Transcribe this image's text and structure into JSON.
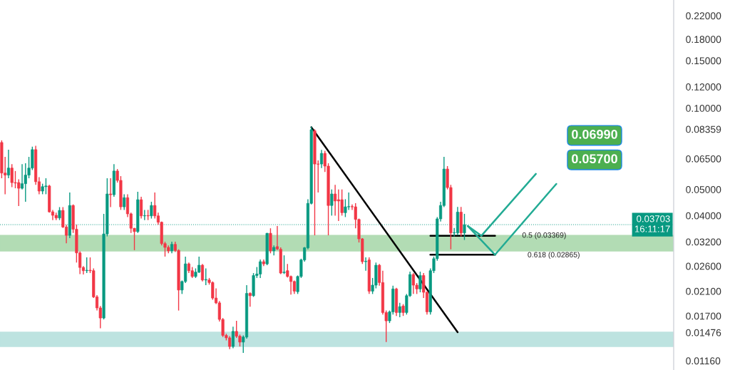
{
  "chart_data": {
    "type": "candlestick",
    "categories": [
      null,
      null,
      null,
      null,
      null,
      null,
      null,
      null,
      null,
      null,
      null,
      null,
      null,
      null,
      null,
      null,
      null,
      null,
      null,
      null,
      null,
      null,
      null,
      null,
      null,
      null,
      null,
      null,
      null,
      null,
      null,
      null,
      null,
      null,
      null,
      null,
      null,
      null,
      null,
      null,
      null,
      null,
      null,
      null,
      null,
      null,
      null,
      null,
      null,
      null,
      null,
      null,
      null,
      null,
      null,
      null,
      null,
      null,
      null,
      null,
      null,
      null,
      null,
      null,
      null,
      null,
      null,
      null,
      null,
      null,
      null,
      null,
      null,
      null,
      null,
      null,
      null,
      null,
      null,
      null,
      null,
      null,
      null,
      null,
      null,
      null,
      null,
      null,
      null,
      null,
      null,
      null,
      null,
      null,
      null,
      null,
      null,
      null,
      null,
      null,
      null,
      null,
      null,
      null,
      null,
      null,
      null,
      null,
      null,
      null,
      null,
      null,
      null,
      null,
      null,
      null,
      null,
      null,
      null,
      null,
      null,
      null,
      null,
      null,
      null,
      null,
      null,
      null,
      null,
      null,
      null,
      null,
      null,
      null,
      null,
      null,
      null,
      null,
      null,
      null,
      null,
      null,
      null,
      null,
      null,
      null,
      null,
      null,
      null,
      null,
      null,
      null,
      null,
      null,
      null,
      null,
      null,
      null,
      null,
      null,
      null,
      null,
      null,
      null,
      null,
      null,
      null,
      null,
      null,
      null,
      null,
      null,
      null,
      null,
      null,
      null,
      null,
      null,
      null,
      null,
      null,
      null,
      null,
      null,
      null,
      null,
      null,
      null,
      null,
      null,
      null,
      null,
      null,
      null,
      null,
      null,
      null,
      null
    ],
    "ohlc": [
      [
        0.0746,
        0.076,
        0.055,
        0.0575
      ],
      [
        0.0575,
        0.066,
        0.048,
        0.0565
      ],
      [
        0.0565,
        0.0702,
        0.055,
        0.06
      ],
      [
        0.06,
        0.062,
        0.051,
        0.053
      ],
      [
        0.053,
        0.0585,
        0.0505,
        0.0528
      ],
      [
        0.053,
        0.0545,
        0.0434,
        0.0505
      ],
      [
        0.0505,
        0.062,
        0.05,
        0.0525
      ],
      [
        0.0525,
        0.0625,
        0.045,
        0.0565
      ],
      [
        0.0565,
        0.066,
        0.055,
        0.06
      ],
      [
        0.06,
        0.072,
        0.059,
        0.0702
      ],
      [
        0.0702,
        0.0725,
        0.052,
        0.0534
      ],
      [
        0.0534,
        0.0555,
        0.048,
        0.0493
      ],
      [
        0.0493,
        0.0525,
        0.048,
        0.0512
      ],
      [
        0.0512,
        0.055,
        0.048,
        0.0515
      ],
      [
        0.0515,
        0.052,
        0.041,
        0.0413
      ],
      [
        0.0413,
        0.042,
        0.0385,
        0.0401
      ],
      [
        0.0401,
        0.041,
        0.0385,
        0.0392
      ],
      [
        0.0392,
        0.043,
        0.0385,
        0.0418
      ],
      [
        0.0418,
        0.043,
        0.036,
        0.0363
      ],
      [
        0.0363,
        0.037,
        0.0316,
        0.0338
      ],
      [
        0.0338,
        0.0487,
        0.033,
        0.0436
      ],
      [
        0.0436,
        0.044,
        0.0345,
        0.0356
      ],
      [
        0.0356,
        0.037,
        0.0268,
        0.0291
      ],
      [
        0.0291,
        0.0295,
        0.0243,
        0.0257
      ],
      [
        0.0257,
        0.026,
        0.0242,
        0.025
      ],
      [
        0.025,
        0.028,
        0.0245,
        0.0251
      ],
      [
        0.0251,
        0.028,
        0.0245,
        0.025
      ],
      [
        0.025,
        0.0255,
        0.0198,
        0.02
      ],
      [
        0.02,
        0.0203,
        0.0178,
        0.0182
      ],
      [
        0.0182,
        0.0185,
        0.0153,
        0.0167
      ],
      [
        0.0167,
        0.0406,
        0.0165,
        0.0342
      ],
      [
        0.0342,
        0.055,
        0.0335,
        0.0481
      ],
      [
        0.0481,
        0.055,
        0.043,
        0.0478
      ],
      [
        0.0478,
        0.062,
        0.047,
        0.0585
      ],
      [
        0.0585,
        0.0595,
        0.053,
        0.054
      ],
      [
        0.054,
        0.056,
        0.042,
        0.0431
      ],
      [
        0.0431,
        0.048,
        0.042,
        0.0466
      ],
      [
        0.0466,
        0.048,
        0.0395,
        0.0406
      ],
      [
        0.0406,
        0.041,
        0.0345,
        0.0359
      ],
      [
        0.0359,
        0.036,
        0.0298,
        0.0349
      ],
      [
        0.0349,
        0.049,
        0.0345,
        0.0458
      ],
      [
        0.0458,
        0.047,
        0.039,
        0.0399
      ],
      [
        0.0399,
        0.042,
        0.0385,
        0.04
      ],
      [
        0.04,
        0.042,
        0.0385,
        0.0399
      ],
      [
        0.0399,
        0.045,
        0.039,
        0.0436
      ],
      [
        0.0436,
        0.0487,
        0.039,
        0.0399
      ],
      [
        0.0399,
        0.041,
        0.037,
        0.0378
      ],
      [
        0.0378,
        0.038,
        0.031,
        0.0315
      ],
      [
        0.0315,
        0.032,
        0.0282,
        0.0305
      ],
      [
        0.0305,
        0.031,
        0.029,
        0.0296
      ],
      [
        0.0296,
        0.032,
        0.029,
        0.0313
      ],
      [
        0.0313,
        0.032,
        0.0293,
        0.0297
      ],
      [
        0.0297,
        0.03,
        0.0178,
        0.0212
      ],
      [
        0.0212,
        0.023,
        0.0205,
        0.0228
      ],
      [
        0.0228,
        0.0282,
        0.0225,
        0.0265
      ],
      [
        0.0265,
        0.0268,
        0.0245,
        0.025
      ],
      [
        0.025,
        0.0258,
        0.0235,
        0.0238
      ],
      [
        0.0238,
        0.0255,
        0.0235,
        0.0247
      ],
      [
        0.0247,
        0.0282,
        0.0245,
        0.0262
      ],
      [
        0.0262,
        0.0265,
        0.0228,
        0.0231
      ],
      [
        0.0231,
        0.0255,
        0.0221,
        0.0232
      ],
      [
        0.0231,
        0.0235,
        0.0222,
        0.0226
      ],
      [
        0.0226,
        0.0228,
        0.0195,
        0.0198
      ],
      [
        0.0198,
        0.0215,
        0.0188,
        0.019
      ],
      [
        0.019,
        0.0193,
        0.0162,
        0.0165
      ],
      [
        0.0165,
        0.0167,
        0.0142,
        0.0144
      ],
      [
        0.0144,
        0.0146,
        0.0138,
        0.0141
      ],
      [
        0.0141,
        0.0143,
        0.0128,
        0.0131
      ],
      [
        0.0131,
        0.0155,
        0.0129,
        0.0149
      ],
      [
        0.0149,
        0.0163,
        0.0141,
        0.0143
      ],
      [
        0.0143,
        0.0145,
        0.0131,
        0.0136
      ],
      [
        0.0136,
        0.0144,
        0.0124,
        0.0142
      ],
      [
        0.0142,
        0.0221,
        0.014,
        0.0206
      ],
      [
        0.0206,
        0.0208,
        0.0184,
        0.0202
      ],
      [
        0.0202,
        0.0245,
        0.02,
        0.024
      ],
      [
        0.024,
        0.0258,
        0.0235,
        0.0243
      ],
      [
        0.0243,
        0.0275,
        0.0235,
        0.027
      ],
      [
        0.027,
        0.0275,
        0.026,
        0.0265
      ],
      [
        0.0265,
        0.0345,
        0.0262,
        0.0344
      ],
      [
        0.0344,
        0.0359,
        0.029,
        0.0296
      ],
      [
        0.0296,
        0.031,
        0.0285,
        0.0305
      ],
      [
        0.0307,
        0.0366,
        0.0298,
        0.0301
      ],
      [
        0.03,
        0.0305,
        0.0243,
        0.0245
      ],
      [
        0.0246,
        0.0285,
        0.0243,
        0.0247
      ],
      [
        0.025,
        0.0265,
        0.0236,
        0.0238
      ],
      [
        0.0238,
        0.024,
        0.0204,
        0.0228
      ],
      [
        0.0228,
        0.023,
        0.0205,
        0.021
      ],
      [
        0.0209,
        0.024,
        0.0205,
        0.0238
      ],
      [
        0.0238,
        0.0277,
        0.0235,
        0.0274
      ],
      [
        0.0274,
        0.0306,
        0.027,
        0.0304
      ],
      [
        0.0304,
        0.046,
        0.03,
        0.0444
      ],
      [
        0.0444,
        0.0855,
        0.044,
        0.0832
      ],
      [
        0.0825,
        0.0835,
        0.0338,
        0.0621
      ],
      [
        0.0621,
        0.064,
        0.0487,
        0.062
      ],
      [
        0.0621,
        0.07,
        0.06,
        0.068
      ],
      [
        0.068,
        0.0695,
        0.058,
        0.061
      ],
      [
        0.061,
        0.0625,
        0.0338,
        0.0436
      ],
      [
        0.0436,
        0.05,
        0.04,
        0.0481
      ],
      [
        0.0481,
        0.052,
        0.04,
        0.0453
      ],
      [
        0.0458,
        0.05,
        0.0382,
        0.0453
      ],
      [
        0.0458,
        0.05,
        0.04,
        0.041
      ],
      [
        0.041,
        0.046,
        0.0395,
        0.0431
      ],
      [
        0.0431,
        0.0487,
        0.042,
        0.0432
      ],
      [
        0.0432,
        0.044,
        0.042,
        0.0431
      ],
      [
        0.0431,
        0.0445,
        0.0359,
        0.0387
      ],
      [
        0.0387,
        0.039,
        0.0318,
        0.0328
      ],
      [
        0.0328,
        0.033,
        0.0265,
        0.027
      ],
      [
        0.027,
        0.028,
        0.025,
        0.0271
      ],
      [
        0.0274,
        0.028,
        0.0205,
        0.021
      ],
      [
        0.021,
        0.0235,
        0.0205,
        0.0221
      ],
      [
        0.0221,
        0.0268,
        0.0215,
        0.0262
      ],
      [
        0.0262,
        0.0265,
        0.022,
        0.0226
      ],
      [
        0.0226,
        0.025,
        0.0172,
        0.0175
      ],
      [
        0.0175,
        0.0178,
        0.0136,
        0.0163
      ],
      [
        0.0163,
        0.0178,
        0.016,
        0.0176
      ],
      [
        0.0176,
        0.022,
        0.0172,
        0.0214
      ],
      [
        0.0214,
        0.0216,
        0.017,
        0.0175
      ],
      [
        0.0175,
        0.019,
        0.0168,
        0.0184
      ],
      [
        0.0185,
        0.0188,
        0.017,
        0.0175
      ],
      [
        0.0175,
        0.0205,
        0.0172,
        0.0202
      ],
      [
        0.0202,
        0.0248,
        0.02,
        0.0242
      ],
      [
        0.0242,
        0.0245,
        0.0205,
        0.0221
      ],
      [
        0.0221,
        0.0225,
        0.0205,
        0.0214
      ],
      [
        0.0214,
        0.0248,
        0.0208,
        0.024
      ],
      [
        0.024,
        0.0245,
        0.0198,
        0.0208
      ],
      [
        0.0208,
        0.021,
        0.0172,
        0.0176
      ],
      [
        0.0176,
        0.0255,
        0.0172,
        0.025
      ],
      [
        0.025,
        0.0282,
        0.0245,
        0.0277
      ],
      [
        0.0277,
        0.0395,
        0.0272,
        0.0389
      ],
      [
        0.0389,
        0.045,
        0.038,
        0.0436
      ],
      [
        0.0436,
        0.066,
        0.043,
        0.0595
      ],
      [
        0.0595,
        0.061,
        0.05,
        0.0508
      ],
      [
        0.0508,
        0.052,
        0.03,
        0.0345
      ],
      [
        0.0345,
        0.036,
        0.0335,
        0.0346
      ],
      [
        0.0345,
        0.0431,
        0.0338,
        0.0412
      ],
      [
        0.0412,
        0.0431,
        0.0335,
        0.0345
      ],
      [
        0.0345,
        0.0406,
        0.0325,
        0.03703
      ],
      null,
      null,
      null,
      null,
      null,
      null,
      null,
      null,
      null,
      null,
      null,
      null,
      null,
      null,
      null,
      null,
      null,
      null,
      null,
      null,
      null,
      null,
      null,
      null,
      null,
      null,
      null,
      null,
      null,
      null,
      null,
      null,
      null,
      null,
      null,
      null,
      null,
      null,
      null,
      null,
      null,
      null,
      null,
      null,
      null,
      null,
      null,
      null,
      null,
      null,
      null,
      null,
      null,
      null,
      null,
      null,
      null,
      null,
      null,
      null,
      null
    ],
    "series": [
      {
        "type": "line",
        "color": "#000000",
        "values": [
          null,
          null,
          null,
          null,
          null,
          null,
          null,
          null,
          null,
          null,
          null,
          null,
          null,
          null,
          null,
          null,
          null,
          null,
          null,
          null,
          null,
          null,
          null,
          null,
          null,
          null,
          null,
          null,
          null,
          null,
          null,
          null,
          null,
          null,
          null,
          null,
          null,
          null,
          null,
          null,
          null,
          null,
          null,
          null,
          null,
          null,
          null,
          null,
          null,
          null,
          null,
          null,
          null,
          null,
          null,
          null,
          null,
          null,
          null,
          null,
          null,
          null,
          null,
          null,
          null,
          null,
          null,
          null,
          null,
          null,
          null,
          null,
          null,
          null,
          null,
          null,
          null,
          null,
          null,
          null,
          null,
          null,
          null,
          null,
          null,
          null,
          null,
          null,
          null,
          null,
          null,
          0.085,
          null,
          null,
          null,
          null,
          null,
          null,
          null,
          null,
          null,
          null,
          null,
          null,
          null,
          null,
          null,
          null,
          null,
          null,
          null,
          null,
          null,
          null,
          null,
          null,
          null,
          null,
          null,
          null,
          null,
          null,
          null,
          null,
          null,
          null,
          null,
          null,
          null,
          null,
          null,
          null,
          null,
          null,
          0.0148,
          null,
          null,
          null,
          null,
          null,
          null,
          null,
          null,
          null,
          null,
          null,
          null,
          null,
          null,
          null,
          null,
          null,
          null,
          null,
          null,
          null,
          null,
          null,
          null,
          null,
          null,
          null,
          null,
          null,
          null,
          null,
          null,
          null,
          null,
          null,
          null,
          null,
          null,
          null,
          null,
          null,
          null,
          null,
          null,
          null,
          null,
          null,
          null,
          null,
          null,
          null,
          null,
          null,
          null,
          null,
          null,
          null,
          null,
          null,
          null,
          null,
          null,
          null
        ]
      },
      {
        "type": "line",
        "color": "#000000",
        "values": [
          null,
          null,
          null,
          null,
          null,
          null,
          null,
          null,
          null,
          null,
          null,
          null,
          null,
          null,
          null,
          null,
          null,
          null,
          null,
          null,
          null,
          null,
          null,
          null,
          null,
          null,
          null,
          null,
          null,
          null,
          null,
          null,
          null,
          null,
          null,
          null,
          null,
          null,
          null,
          null,
          null,
          null,
          null,
          null,
          null,
          null,
          null,
          null,
          null,
          null,
          null,
          null,
          null,
          null,
          null,
          null,
          null,
          null,
          null,
          null,
          null,
          null,
          null,
          null,
          null,
          null,
          null,
          null,
          null,
          null,
          null,
          null,
          null,
          null,
          null,
          null,
          null,
          null,
          null,
          null,
          null,
          null,
          null,
          null,
          null,
          null,
          null,
          null,
          null,
          null,
          null,
          null,
          null,
          null,
          null,
          null,
          null,
          null,
          null,
          null,
          null,
          null,
          null,
          null,
          null,
          null,
          null,
          null,
          null,
          null,
          null,
          null,
          null,
          null,
          null,
          null,
          null,
          null,
          null,
          null,
          null,
          null,
          null,
          null,
          null,
          null,
          0.03369,
          null,
          null,
          null,
          null,
          null,
          null,
          null,
          null,
          null,
          null,
          null,
          null,
          null,
          null,
          null,
          null,
          null,
          null,
          0.03369,
          null,
          null,
          null,
          null,
          null,
          null,
          null,
          null,
          null,
          null,
          null,
          null,
          null,
          null,
          null,
          null,
          null,
          null,
          null,
          null,
          null,
          null,
          null,
          null,
          null,
          null,
          null,
          null,
          null,
          null,
          null,
          null,
          null,
          null,
          null,
          null,
          null,
          null,
          null,
          null,
          null,
          null,
          null,
          null,
          null,
          null,
          null,
          null,
          null,
          null,
          null,
          null
        ]
      },
      {
        "type": "line",
        "color": "#000000",
        "values": [
          null,
          null,
          null,
          null,
          null,
          null,
          null,
          null,
          null,
          null,
          null,
          null,
          null,
          null,
          null,
          null,
          null,
          null,
          null,
          null,
          null,
          null,
          null,
          null,
          null,
          null,
          null,
          null,
          null,
          null,
          null,
          null,
          null,
          null,
          null,
          null,
          null,
          null,
          null,
          null,
          null,
          null,
          null,
          null,
          null,
          null,
          null,
          null,
          null,
          null,
          null,
          null,
          null,
          null,
          null,
          null,
          null,
          null,
          null,
          null,
          null,
          null,
          null,
          null,
          null,
          null,
          null,
          null,
          null,
          null,
          null,
          null,
          null,
          null,
          null,
          null,
          null,
          null,
          null,
          null,
          null,
          null,
          null,
          null,
          null,
          null,
          null,
          null,
          null,
          null,
          null,
          null,
          null,
          null,
          null,
          null,
          null,
          null,
          null,
          null,
          null,
          null,
          null,
          null,
          null,
          null,
          null,
          null,
          null,
          null,
          null,
          null,
          null,
          null,
          null,
          null,
          null,
          null,
          null,
          null,
          null,
          null,
          null,
          null,
          null,
          null,
          0.02865,
          null,
          null,
          null,
          null,
          null,
          null,
          null,
          null,
          null,
          null,
          null,
          null,
          null,
          null,
          null,
          null,
          null,
          null,
          0.02865,
          null,
          null,
          null,
          null,
          null,
          null,
          null,
          null,
          null,
          null,
          null,
          null,
          null,
          null,
          null,
          null,
          null,
          null,
          null,
          null,
          null,
          null,
          null,
          null,
          null,
          null,
          null,
          null,
          null,
          null,
          null,
          null,
          null,
          null,
          null,
          null,
          null,
          null,
          null,
          null,
          null,
          null,
          null,
          null,
          null,
          null,
          null,
          null,
          null,
          null,
          null,
          null
        ]
      },
      {
        "type": "line",
        "color": "#22ab94",
        "values": [
          null,
          null,
          null,
          null,
          null,
          null,
          null,
          null,
          null,
          null,
          null,
          null,
          null,
          null,
          null,
          null,
          null,
          null,
          null,
          null,
          null,
          null,
          null,
          null,
          null,
          null,
          null,
          null,
          null,
          null,
          null,
          null,
          null,
          null,
          null,
          null,
          null,
          null,
          null,
          null,
          null,
          null,
          null,
          null,
          null,
          null,
          null,
          null,
          null,
          null,
          null,
          null,
          null,
          null,
          null,
          null,
          null,
          null,
          null,
          null,
          null,
          null,
          null,
          null,
          null,
          null,
          null,
          null,
          null,
          null,
          null,
          null,
          null,
          null,
          null,
          null,
          null,
          null,
          null,
          null,
          null,
          null,
          null,
          null,
          null,
          null,
          null,
          null,
          null,
          null,
          null,
          null,
          null,
          null,
          null,
          null,
          null,
          null,
          null,
          null,
          null,
          null,
          null,
          null,
          null,
          null,
          null,
          null,
          null,
          null,
          null,
          null,
          null,
          null,
          null,
          null,
          null,
          null,
          null,
          null,
          null,
          null,
          null,
          null,
          null,
          null,
          null,
          null,
          null,
          null,
          null,
          null,
          null,
          null,
          null,
          null,
          null,
          0.0366,
          null,
          null,
          null,
          0.03369,
          null,
          null,
          null,
          null,
          null,
          null,
          null,
          null,
          null,
          null,
          null,
          null,
          null,
          null,
          null,
          0.0571,
          null,
          null,
          null,
          null,
          null,
          null,
          null,
          null,
          null,
          null,
          null,
          null,
          null,
          null,
          null,
          null,
          null,
          null,
          null,
          null,
          null,
          null,
          null,
          null,
          null,
          null,
          null,
          null,
          null,
          null,
          null,
          null,
          null,
          null,
          null,
          null,
          null,
          null,
          null,
          null
        ]
      },
      {
        "type": "line",
        "color": "#22ab94",
        "values": [
          null,
          null,
          null,
          null,
          null,
          null,
          null,
          null,
          null,
          null,
          null,
          null,
          null,
          null,
          null,
          null,
          null,
          null,
          null,
          null,
          null,
          null,
          null,
          null,
          null,
          null,
          null,
          null,
          null,
          null,
          null,
          null,
          null,
          null,
          null,
          null,
          null,
          null,
          null,
          null,
          null,
          null,
          null,
          null,
          null,
          null,
          null,
          null,
          null,
          null,
          null,
          null,
          null,
          null,
          null,
          null,
          null,
          null,
          null,
          null,
          null,
          null,
          null,
          null,
          null,
          null,
          null,
          null,
          null,
          null,
          null,
          null,
          null,
          null,
          null,
          null,
          null,
          null,
          null,
          null,
          null,
          null,
          null,
          null,
          null,
          null,
          null,
          null,
          null,
          null,
          null,
          null,
          null,
          null,
          null,
          null,
          null,
          null,
          null,
          null,
          null,
          null,
          null,
          null,
          null,
          null,
          null,
          null,
          null,
          null,
          null,
          null,
          null,
          null,
          null,
          null,
          null,
          null,
          null,
          null,
          null,
          null,
          null,
          null,
          null,
          null,
          null,
          null,
          null,
          null,
          null,
          null,
          null,
          null,
          null,
          null,
          null,
          0.0366,
          null,
          null,
          null,
          null,
          null,
          null,
          null,
          0.02865,
          null,
          null,
          null,
          null,
          null,
          null,
          null,
          null,
          null,
          null,
          null,
          null,
          null,
          null,
          null,
          null,
          null,
          0.0524,
          null,
          null,
          null,
          null,
          null,
          null,
          null,
          null,
          null,
          null,
          null,
          null,
          null,
          null,
          null,
          null,
          null,
          null,
          null,
          null,
          null,
          null,
          null,
          null,
          null,
          null,
          null,
          null,
          null,
          null,
          null,
          null,
          null,
          null
        ]
      }
    ],
    "bands": [
      {
        "axis": "y",
        "from": 0.0296,
        "to": 0.0338,
        "color": "#a5d6a7"
      },
      {
        "axis": "y",
        "from": 0.0131,
        "to": 0.0148,
        "color": "#b2dfdb"
      }
    ],
    "ref_lines": [
      {
        "axis": "y",
        "value": 0.03703,
        "label": "0.03703\n16:11:17",
        "color": "#089981",
        "line_style": "dotted"
      }
    ],
    "annotations": [
      {
        "text": "0.5 (0.03369)",
        "y": 0.03369
      },
      "0.618 (0.02865)",
      "0.06990",
      "0.05700"
    ],
    "log": "y",
    "ylim": [
      0.01072,
      0.2515
    ],
    "yticks": [
      {
        "value": 0.22,
        "label": "0.22000"
      },
      {
        "value": 0.18,
        "label": "0.18000"
      },
      {
        "value": 0.15,
        "label": "0.15000"
      },
      {
        "value": 0.12,
        "label": "0.12000"
      },
      {
        "value": 0.1,
        "label": "0.10000"
      },
      {
        "value": 0.08359,
        "label": "0.08359"
      },
      {
        "value": 0.065,
        "label": "0.06500"
      },
      {
        "value": 0.05,
        "label": "0.05000"
      },
      {
        "value": 0.04,
        "label": "0.04000"
      },
      {
        "value": 0.032,
        "label": "0.03200"
      },
      {
        "value": 0.026,
        "label": "0.02600"
      },
      {
        "value": 0.021,
        "label": "0.02100"
      },
      {
        "value": 0.017,
        "label": "0.01700"
      },
      {
        "value": 0.01476,
        "label": "0.01476"
      },
      {
        "value": 0.0116,
        "label": "0.01160"
      }
    ],
    "tick_labels": "y",
    "grid": false
  }
}
